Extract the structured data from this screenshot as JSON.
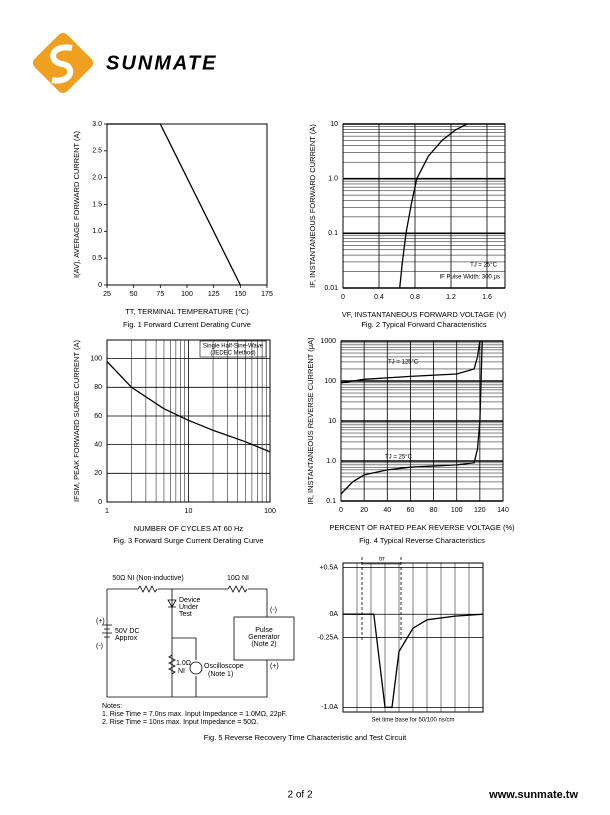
{
  "header": {
    "logo_text": "SUNMATE"
  },
  "chart_data": [
    {
      "type": "line",
      "caption": "Fig. 1  Forward Current Derating Curve",
      "xlabel": "TT, TERMINAL TEMPERATURE (°C)",
      "ylabel": "I(AV), AVERAGE FORWARD CURRENT (A)",
      "series": [
        {
          "color": "#000000",
          "x": [
            25,
            75,
            150
          ],
          "values": [
            3.0,
            3.0,
            0
          ]
        }
      ],
      "xlim": [
        25,
        175
      ],
      "ylim": [
        0,
        3.0
      ],
      "xticks": [
        25,
        50,
        75,
        100,
        125,
        150,
        175
      ],
      "yticks": [
        0,
        0.5,
        {
          "value": 1,
          "label": "1.0"
        },
        1.5,
        {
          "value": 2,
          "label": "2.0"
        },
        2.5,
        {
          "value": 3,
          "label": "3.0"
        }
      ],
      "grid": false
    },
    {
      "type": "line",
      "caption": "Fig. 2  Typical Forward Characteristics",
      "xlabel": "VF, INSTANTANEOUS FORWARD VOLTAGE (V)",
      "ylabel": "IF, INSTANTANEOUS FORWARD CURRENT (A)",
      "annotations": [
        "TJ = 25°C",
        "IF Pulse Width: 300 μs"
      ],
      "series": [
        {
          "color": "#000000",
          "x": [
            0.63,
            0.66,
            0.7,
            0.76,
            0.82,
            0.95,
            1.1,
            1.25,
            1.38
          ],
          "values": [
            0.01,
            0.03,
            0.1,
            0.35,
            1,
            2.6,
            5,
            7.8,
            10
          ]
        }
      ],
      "xlim": [
        0,
        1.8
      ],
      "ylim": [
        0.01,
        10
      ],
      "yscale": "log",
      "xticks": [
        0,
        0.4,
        0.8,
        1.2,
        1.6
      ],
      "yticks": [
        0.01,
        0.1,
        {
          "value": 1,
          "label": "1.0"
        },
        10
      ],
      "grid": true
    },
    {
      "type": "line",
      "caption": "Fig. 3  Forward Surge Current Derating Curve",
      "xlabel": "NUMBER OF CYCLES AT 60 Hz",
      "ylabel": "IFSM, PEAK FORWARD SURGE CURRENT (A)",
      "annotations": [
        "Single Half-Sine-Wave",
        "(JEDEC Method)"
      ],
      "series": [
        {
          "color": "#000000",
          "x": [
            1,
            2,
            5,
            10,
            20,
            50,
            100
          ],
          "values": [
            98,
            80,
            65,
            57,
            50,
            42,
            35
          ]
        }
      ],
      "xlim": [
        1,
        100
      ],
      "ylim": [
        0,
        113
      ],
      "xscale": "log",
      "xticks": [
        1,
        10,
        100
      ],
      "yticks": [
        0,
        20,
        40,
        60,
        80,
        100
      ],
      "grid": true
    },
    {
      "type": "line",
      "caption": "Fig. 4  Typical Reverse Characteristics",
      "xlabel": "PERCENT OF RATED PEAK REVERSE VOLTAGE (%)",
      "ylabel": "IR, INSTANTANEOUS REVERSE CURRENT (μA)",
      "annotations": [
        "TJ = 125°C",
        "TJ = 25°C"
      ],
      "series": [
        {
          "color": "#000000",
          "x": [
            0,
            20,
            60,
            100,
            115,
            118,
            120
          ],
          "values": [
            90,
            110,
            130,
            150,
            200,
            400,
            1000
          ]
        },
        {
          "color": "#000000",
          "x": [
            0,
            10,
            20,
            40,
            60,
            100,
            115,
            118,
            120,
            122
          ],
          "values": [
            0.15,
            0.3,
            0.45,
            0.6,
            0.7,
            0.8,
            0.9,
            2,
            10,
            1000
          ]
        }
      ],
      "xlim": [
        0,
        140
      ],
      "ylim": [
        0.1,
        1000
      ],
      "yscale": "log",
      "xticks": [
        0,
        20,
        40,
        60,
        80,
        100,
        120,
        140
      ],
      "yticks": [
        0.1,
        {
          "value": 1,
          "label": "1.0"
        },
        10,
        100,
        1000
      ],
      "grid": true
    },
    {
      "type": "line",
      "caption": "Fig. 5  Reverse Recovery Time Characteristic and Test Circuit",
      "annotations": [
        "trr",
        "Set time base for 50/100 ns/cm"
      ],
      "series": [
        {
          "color": "#000000",
          "x": [
            0,
            2.2,
            2.6,
            3,
            3.5,
            4,
            5,
            6,
            8,
            10
          ],
          "values": [
            0,
            0,
            -0.5,
            -1.0,
            -1.0,
            -0.4,
            -0.15,
            -0.06,
            -0.02,
            0
          ]
        }
      ],
      "xlim": [
        0,
        10
      ],
      "ylim": [
        -1.05,
        0.55
      ],
      "yticks": [
        {
          "value": -1,
          "label": "-1.0A"
        },
        {
          "value": -0.25,
          "label": "-0.25A"
        },
        {
          "value": 0,
          "label": "0A"
        },
        {
          "value": 0.5,
          "label": "+0.5A"
        }
      ],
      "grid": true
    }
  ],
  "circuit": {
    "r1": "50Ω NI (Non-inductive)",
    "r2": "10Ω NI",
    "dut": [
      "Device",
      "Under",
      "Test"
    ],
    "bat_plus": "(+)",
    "bat": [
      "50V DC",
      "Approx"
    ],
    "bat_minus": "(-)",
    "gen_minus": "(-)",
    "gen": [
      "Pulse",
      "Generator",
      "(Note 2)"
    ],
    "gen_plus": "(+)",
    "r3": [
      "1.0Ω",
      "NI"
    ],
    "scope": [
      "Oscilloscope",
      "(Note 1)"
    ],
    "notes": [
      "Notes:",
      "1. Rise Time = 7.0ns max. Input Impedance = 1.0MΩ, 22pF.",
      "2. Rise Time = 10ns max. Input Impedance = 50Ω."
    ]
  },
  "footer": {
    "page": "2 of 2",
    "url": "www.sunmate.tw"
  }
}
